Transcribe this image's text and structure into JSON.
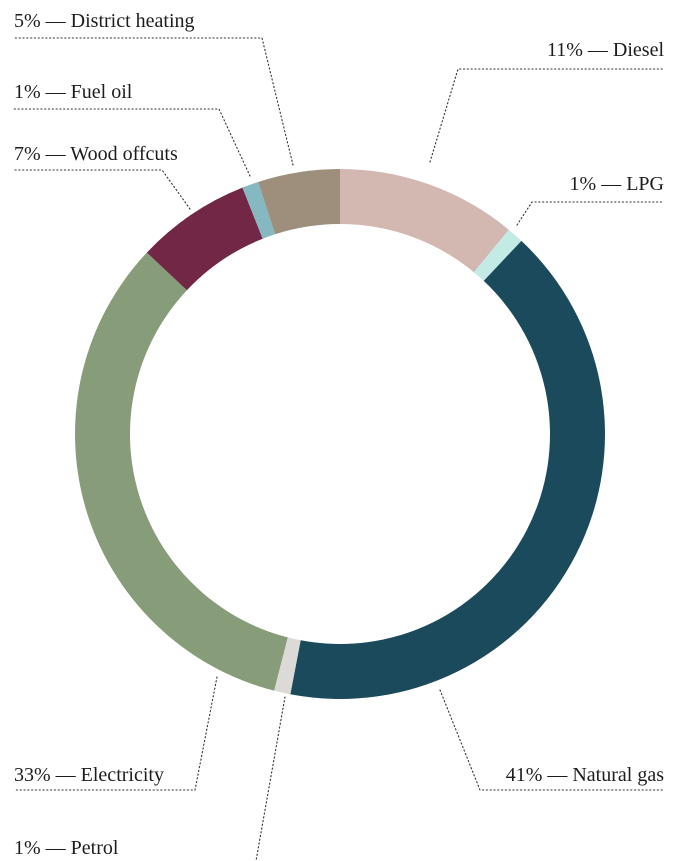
{
  "chart_data": {
    "type": "pie",
    "donut": true,
    "order": "clockwise from 12 o'clock",
    "slices": [
      {
        "name": "Diesel",
        "value": 11,
        "label": "11% — Diesel",
        "color": "#d3b7b1"
      },
      {
        "name": "LPG",
        "value": 1,
        "label": "1% — LPG",
        "color": "#c2ebe6"
      },
      {
        "name": "Natural gas",
        "value": 41,
        "label": "41% — Natural gas",
        "color": "#1a4a5c"
      },
      {
        "name": "Petrol",
        "value": 1,
        "label": "1% — Petrol",
        "color": "#dcdad7"
      },
      {
        "name": "Electricity",
        "value": 33,
        "label": "33% — Electricity",
        "color": "#879c78"
      },
      {
        "name": "Wood offcuts",
        "value": 7,
        "label": "7% — Wood offcuts",
        "color": "#712745"
      },
      {
        "name": "Fuel oil",
        "value": 1,
        "label": "1% — Fuel oil",
        "color": "#85b8c0"
      },
      {
        "name": "District heating",
        "value": 5,
        "label": "5% — District heating",
        "color": "#9e8f7c"
      }
    ]
  }
}
